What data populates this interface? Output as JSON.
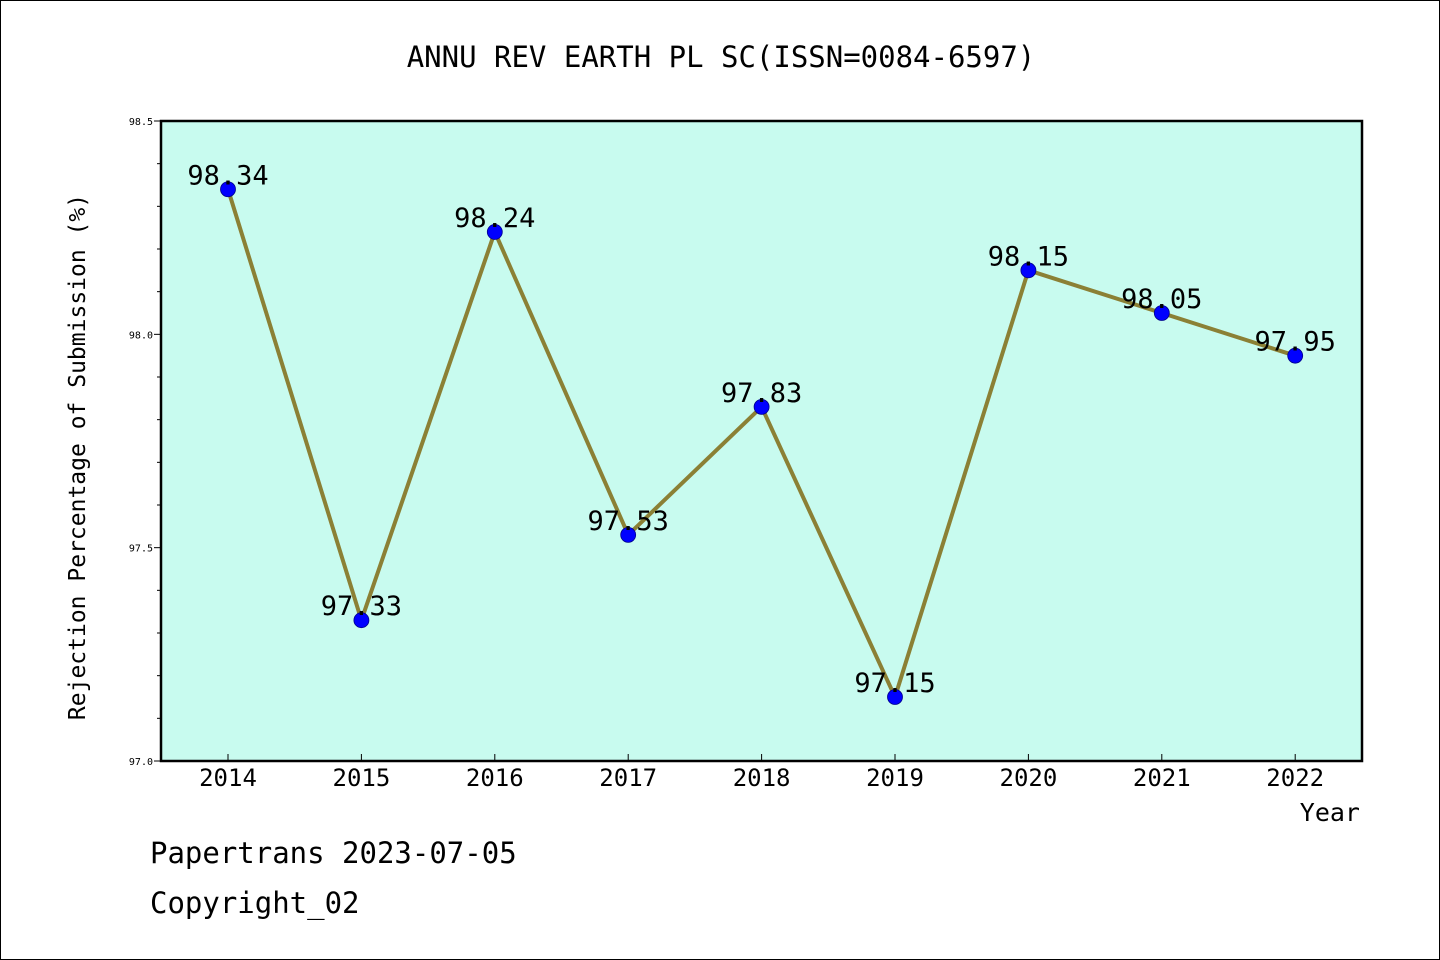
{
  "chart_data": {
    "type": "line",
    "title": "ANNU REV EARTH PL SC(ISSN=0084-6597)",
    "xlabel": "Year",
    "ylabel": "Rejection Percentage of Submission (%)",
    "categories": [
      "2014",
      "2015",
      "2016",
      "2017",
      "2018",
      "2019",
      "2020",
      "2021",
      "2022"
    ],
    "series": [
      {
        "values": [
          98.34,
          97.33,
          98.24,
          97.53,
          97.83,
          97.15,
          98.15,
          98.05,
          97.95
        ],
        "data_labels": [
          "98.34",
          "97.33",
          "98.24",
          "97.53",
          "97.83",
          "97.15",
          "98.15",
          "98.05",
          "97.95"
        ]
      }
    ],
    "ylim": [
      97.0,
      98.5
    ],
    "y_ticks": [
      "97.0",
      "97.5",
      "98.0",
      "98.5"
    ],
    "y_tick_values": [
      97.0,
      97.5,
      98.0,
      98.5
    ],
    "y_minor_step": 0.1,
    "grid": false,
    "colors": {
      "plot_background": "#c8fbef",
      "line": "#8b8035",
      "marker": "#0000ff"
    }
  },
  "footer": {
    "line1": "Papertrans 2023-07-05",
    "line2": "Copyright_02"
  }
}
